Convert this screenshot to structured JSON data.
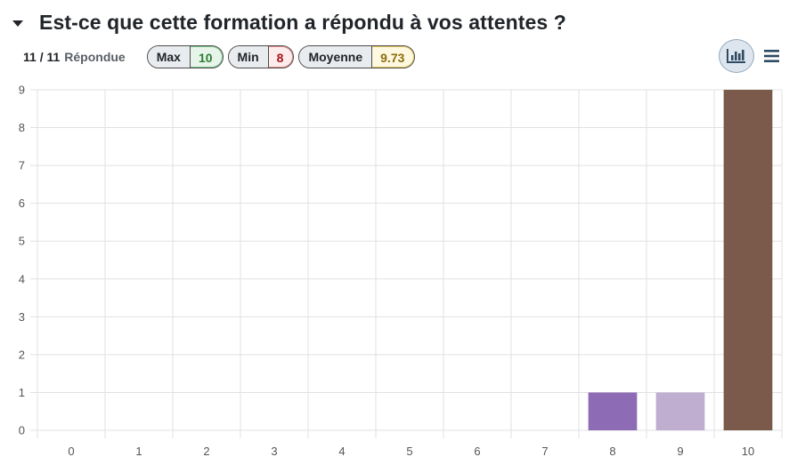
{
  "question": {
    "title": "Est-ce que cette formation a répondu à vos attentes ?",
    "answered_count": "11 / 11",
    "answered_label": "Répondue"
  },
  "stats": {
    "max_label": "Max",
    "max_value": "10",
    "min_label": "Min",
    "min_value": "8",
    "avg_label": "Moyenne",
    "avg_value": "9.73"
  },
  "toolbar": {
    "graph_icon": "bar-chart-icon",
    "list_icon": "list-icon"
  },
  "colors": {
    "bar_8": "#8e6bb5",
    "bar_9": "#c0aed0",
    "bar_10": "#7b5a4c",
    "grid": "#e1e1e1",
    "axis_text": "#555555"
  },
  "chart_data": {
    "type": "bar",
    "categories": [
      "0",
      "1",
      "2",
      "3",
      "4",
      "5",
      "6",
      "7",
      "8",
      "9",
      "10"
    ],
    "values": [
      0,
      0,
      0,
      0,
      0,
      0,
      0,
      0,
      1,
      1,
      9
    ],
    "ylim": [
      0,
      9
    ],
    "yticks": [
      "0",
      "1",
      "2",
      "3",
      "4",
      "5",
      "6",
      "7",
      "8",
      "9"
    ],
    "grid": true,
    "legend": "none"
  }
}
